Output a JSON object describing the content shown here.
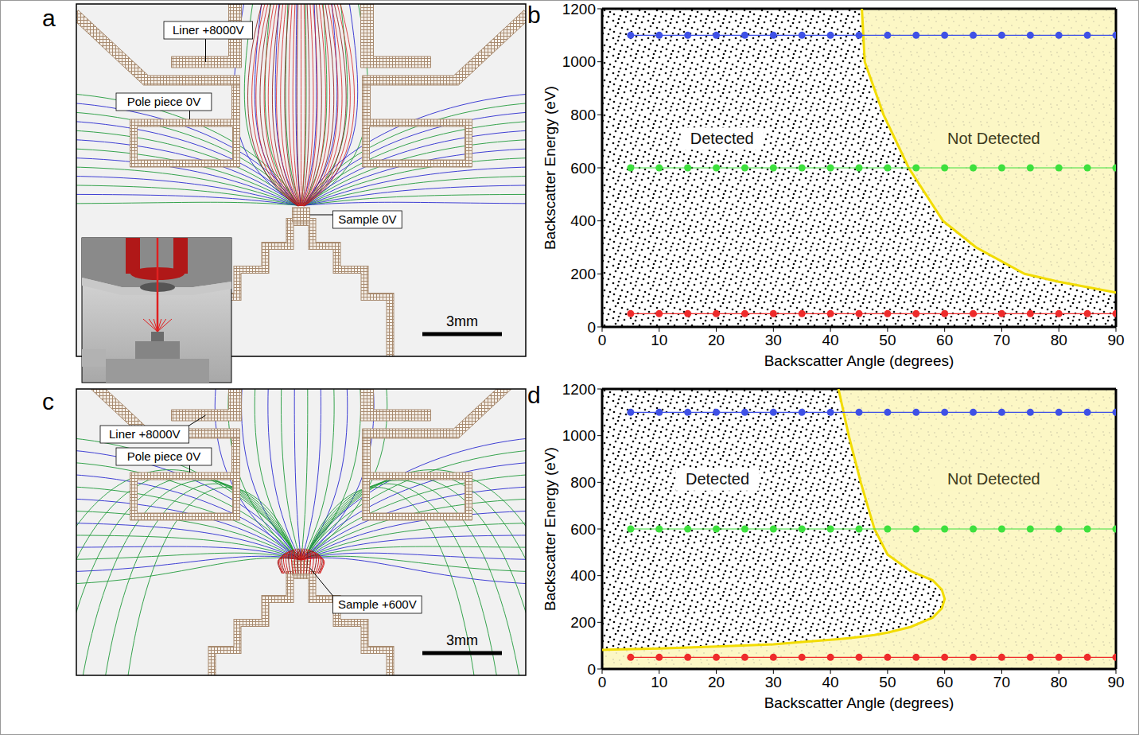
{
  "diagrams": [
    {
      "letter": "a",
      "liner": "Liner +8000V",
      "pole_piece": "Pole piece 0V",
      "sample": "Sample 0V",
      "scale_bar": "3mm"
    },
    {
      "letter": "c",
      "liner": "Liner +8000V",
      "pole_piece": "Pole piece 0V",
      "sample": "Sample +600V",
      "scale_bar": "3mm"
    }
  ],
  "chart_data": [
    {
      "letter": "b",
      "type": "scatter",
      "x_label": "Backscatter Angle (degrees)",
      "y_label": "Backscatter Energy (eV)",
      "xlim": [
        0,
        90
      ],
      "ylim": [
        0,
        1200
      ],
      "xticks": [
        0,
        10,
        20,
        30,
        40,
        50,
        60,
        70,
        80,
        90
      ],
      "yticks": [
        0,
        200,
        400,
        600,
        800,
        1000,
        1200
      ],
      "grid": false,
      "series": [
        {
          "color": "#3f51e6",
          "marker": "circle",
          "x": [
            5,
            10,
            15,
            20,
            25,
            30,
            35,
            40,
            45,
            50,
            55,
            60,
            65,
            70,
            75,
            80,
            85,
            90
          ],
          "values": [
            1100,
            1100,
            1100,
            1100,
            1100,
            1100,
            1100,
            1100,
            1100,
            1100,
            1100,
            1100,
            1100,
            1100,
            1100,
            1100,
            1100,
            1100
          ]
        },
        {
          "color": "#3ee03e",
          "marker": "circle",
          "x": [
            5,
            10,
            15,
            20,
            25,
            30,
            35,
            40,
            45,
            50,
            55,
            60,
            65,
            70,
            75,
            80,
            85,
            90
          ],
          "values": [
            600,
            600,
            600,
            600,
            600,
            600,
            600,
            600,
            600,
            600,
            600,
            600,
            600,
            600,
            600,
            600,
            600,
            600
          ]
        },
        {
          "color": "#ee2b2b",
          "marker": "circle",
          "x": [
            5,
            10,
            15,
            20,
            25,
            30,
            35,
            40,
            45,
            50,
            55,
            60,
            65,
            70,
            75,
            80,
            85,
            90
          ],
          "values": [
            50,
            50,
            50,
            50,
            50,
            50,
            50,
            50,
            50,
            50,
            50,
            50,
            50,
            50,
            50,
            50,
            50,
            50
          ]
        }
      ],
      "detected_region": {
        "x": [
          0,
          45.5,
          46,
          49.3,
          53.7,
          59.7,
          65.5,
          74,
          80,
          85,
          90
        ],
        "low": [
          0,
          0,
          0,
          0,
          0,
          0,
          0,
          0,
          0,
          0,
          0
        ],
        "high": [
          1200,
          1200,
          1000,
          800,
          600,
          400,
          300,
          200,
          170,
          150,
          130
        ]
      },
      "annotations": [
        {
          "text": "Detected",
          "x": 21,
          "y": 710
        },
        {
          "text": "Not Detected",
          "x": 68.6,
          "y": 710
        }
      ]
    },
    {
      "letter": "d",
      "type": "scatter",
      "x_label": "Backscatter Angle (degrees)",
      "y_label": "Backscatter Energy (eV)",
      "xlim": [
        0,
        90
      ],
      "ylim": [
        0,
        1200
      ],
      "xticks": [
        0,
        10,
        20,
        30,
        40,
        50,
        60,
        70,
        80,
        90
      ],
      "yticks": [
        0,
        200,
        400,
        600,
        800,
        1000,
        1200
      ],
      "grid": false,
      "series": [
        {
          "color": "#3f51e6",
          "marker": "circle",
          "x": [
            5,
            10,
            15,
            20,
            25,
            30,
            35,
            40,
            45,
            50,
            55,
            60,
            65,
            70,
            75,
            80,
            85,
            90
          ],
          "values": [
            1100,
            1100,
            1100,
            1100,
            1100,
            1100,
            1100,
            1100,
            1100,
            1100,
            1100,
            1100,
            1100,
            1100,
            1100,
            1100,
            1100,
            1100
          ]
        },
        {
          "color": "#3ee03e",
          "marker": "circle",
          "x": [
            5,
            10,
            15,
            20,
            25,
            30,
            35,
            40,
            45,
            50,
            55,
            60,
            65,
            70,
            75,
            80,
            85,
            90
          ],
          "values": [
            600,
            600,
            600,
            600,
            600,
            600,
            600,
            600,
            600,
            600,
            600,
            600,
            600,
            600,
            600,
            600,
            600,
            600
          ]
        },
        {
          "color": "#ee2b2b",
          "marker": "circle",
          "x": [
            5,
            10,
            15,
            20,
            25,
            30,
            35,
            40,
            45,
            50,
            55,
            60,
            65,
            70,
            75,
            80,
            85,
            90
          ],
          "values": [
            50,
            50,
            50,
            50,
            50,
            50,
            50,
            50,
            50,
            50,
            50,
            50,
            50,
            50,
            50,
            50,
            50,
            50
          ]
        }
      ],
      "detected_region": {
        "x": [
          0,
          10,
          20,
          30,
          40,
          41.4,
          43.2,
          45.3,
          47.7,
          50,
          54,
          57.9,
          59.5,
          60
        ],
        "low": [
          82,
          88,
          96,
          106,
          125,
          128,
          132,
          138,
          146,
          156,
          180,
          220,
          260,
          300
        ],
        "high": [
          1200,
          1200,
          1200,
          1200,
          1200,
          1200,
          1000,
          800,
          600,
          490,
          420,
          380,
          340,
          300
        ]
      },
      "annotations": [
        {
          "text": "Detected",
          "x": 20.2,
          "y": 812
        },
        {
          "text": "Not Detected",
          "x": 68.6,
          "y": 812
        }
      ]
    }
  ]
}
